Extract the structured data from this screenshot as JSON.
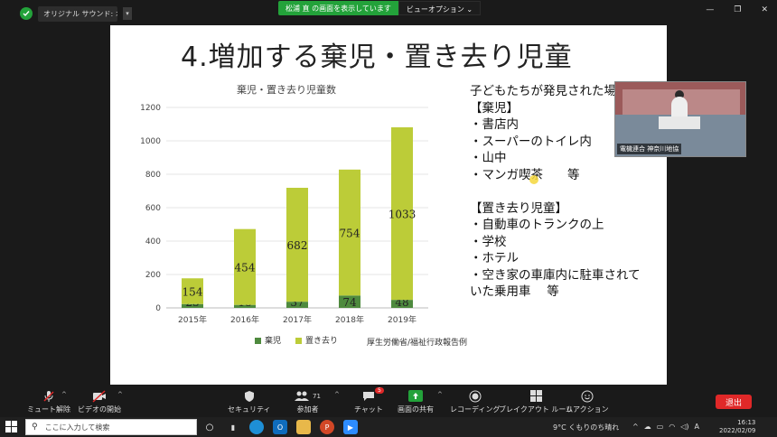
{
  "topbar": {
    "meeting_title": "オリジナル サウンド: オフ",
    "share_banner": "松浦 直 の画面を表示しています",
    "view_options": "ビューオプション ⌄"
  },
  "slide": {
    "title": "4.増加する棄児・置き去り児童",
    "source": "厚生労働省/福祉行政報告例",
    "right_text": [
      "子どもたちが発見された場",
      "【棄児】",
      "・書店内",
      "・スーパーのトイレ内",
      "・山中",
      "・マンガ喫茶　　等",
      "",
      "【置き去り児童】",
      "・自動車のトランクの上",
      "・学校",
      "・ホテル",
      "・空き家の車庫内に駐車されて",
      "いた乗用車　 等"
    ]
  },
  "chart_data": {
    "type": "bar",
    "stacked": true,
    "title": "棄児・置き去り児童数",
    "categories": [
      "2015年",
      "2016年",
      "2017年",
      "2018年",
      "2019年"
    ],
    "series": [
      {
        "name": "棄児",
        "values": [
          23,
          18,
          37,
          74,
          48
        ],
        "color": "#4e8a3e"
      },
      {
        "name": "置き去り",
        "values": [
          154,
          454,
          682,
          754,
          1033
        ],
        "color": "#bccc38"
      }
    ],
    "ylim": [
      0,
      1200
    ],
    "yticks": [
      "0",
      "200",
      "400",
      "600",
      "800",
      "1000",
      "1200"
    ],
    "legend": "bottom",
    "grid": true
  },
  "video_tile": {
    "name": "電機連合 神奈川地協"
  },
  "toolbar": {
    "mute": "ミュート解除",
    "video": "ビデオの開始",
    "security": "セキュリティ",
    "participants": "参加者",
    "participants_count": "71",
    "chat": "チャット",
    "chat_badge": "5",
    "share": "画面の共有",
    "record": "レコーディング",
    "breakout": "ブレイクアウト ルーム",
    "reactions": "リアクション",
    "leave": "退出"
  },
  "taskbar": {
    "search_placeholder": "ここに入力して検索",
    "weather": "9°C くもりのち晴れ",
    "time": "16:13",
    "date": "2022/02/09"
  },
  "colors": {
    "zoom_green": "#23a23a",
    "leave_red": "#e02828",
    "bar_dark": "#4e8a3e",
    "bar_light": "#bccc38"
  }
}
